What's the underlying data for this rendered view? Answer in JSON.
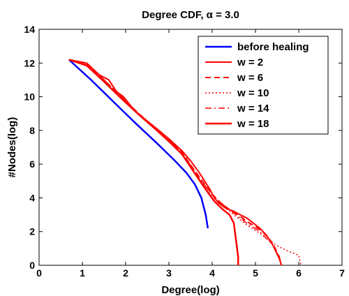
{
  "chart_data": {
    "type": "line",
    "title": "Degree CDF, α = 3.0",
    "xlabel": "Degree(log)",
    "ylabel": "#Nodes(log)",
    "xlim": [
      0,
      7
    ],
    "ylim": [
      0,
      14
    ],
    "xticks": [
      "0",
      "1",
      "2",
      "3",
      "4",
      "5",
      "6",
      "7"
    ],
    "yticks": [
      "0",
      "2",
      "4",
      "6",
      "8",
      "10",
      "12",
      "14"
    ],
    "grid": false,
    "legend_position": "top-right",
    "series": [
      {
        "name": "before healing",
        "color": "#0000ff",
        "style": "solid",
        "width": 2.5,
        "x": [
          0.69,
          1.2,
          1.7,
          2.2,
          2.7,
          3.1,
          3.4,
          3.6,
          3.75,
          3.85,
          3.9
        ],
        "y": [
          12.2,
          11.0,
          9.75,
          8.5,
          7.3,
          6.3,
          5.5,
          4.8,
          4.0,
          3.0,
          2.2
        ]
      },
      {
        "name": "w = 2",
        "color": "#ff0000",
        "style": "solid",
        "width": 2,
        "x": [
          0.69,
          1.1,
          1.39,
          1.61,
          1.79,
          1.95,
          2.2,
          2.48,
          2.77,
          3.0,
          3.3,
          3.5,
          3.7,
          3.85,
          3.95,
          4.05,
          4.15,
          4.3,
          4.5,
          4.65,
          4.8,
          4.95,
          5.1,
          5.25,
          5.4,
          5.55,
          5.6
        ],
        "y": [
          12.2,
          12.0,
          11.3,
          11.0,
          10.3,
          10.0,
          9.2,
          8.6,
          8.0,
          7.5,
          6.8,
          6.2,
          5.5,
          4.9,
          4.5,
          4.0,
          3.7,
          3.4,
          3.2,
          3.0,
          2.8,
          2.5,
          2.2,
          1.8,
          1.2,
          0.4,
          0.0
        ]
      },
      {
        "name": "w = 6",
        "color": "#ff0000",
        "style": "dashed",
        "width": 2,
        "x": [
          0.69,
          1.1,
          1.5,
          1.9,
          2.3,
          2.7,
          3.0,
          3.3,
          3.6,
          3.8,
          4.0,
          4.2,
          4.4,
          4.6,
          4.8,
          5.0,
          5.2,
          5.4,
          5.55,
          5.6
        ],
        "y": [
          12.2,
          11.9,
          11.0,
          10.0,
          9.0,
          8.1,
          7.4,
          6.7,
          5.6,
          4.9,
          4.2,
          3.7,
          3.3,
          3.0,
          2.6,
          2.3,
          1.9,
          1.3,
          0.5,
          0.0
        ]
      },
      {
        "name": "w = 10",
        "color": "#ff0000",
        "style": "dotted",
        "width": 1.5,
        "x": [
          0.69,
          1.1,
          1.5,
          1.9,
          2.3,
          2.7,
          3.0,
          3.3,
          3.6,
          3.9,
          4.2,
          4.5,
          4.8,
          5.1,
          5.4,
          5.7,
          5.9,
          6.0,
          6.05
        ],
        "y": [
          12.2,
          11.85,
          10.95,
          9.95,
          8.95,
          8.05,
          7.35,
          6.65,
          5.5,
          4.4,
          3.6,
          3.0,
          2.4,
          1.9,
          1.3,
          0.9,
          0.7,
          0.6,
          0.0
        ]
      },
      {
        "name": "w = 14",
        "color": "#ff0000",
        "style": "dashdot",
        "width": 1.5,
        "x": [
          0.69,
          1.1,
          1.5,
          1.9,
          2.3,
          2.7,
          3.0,
          3.3,
          3.6,
          3.9,
          4.2,
          4.5,
          4.8,
          5.1,
          5.4,
          5.55,
          5.6
        ],
        "y": [
          12.2,
          11.9,
          11.0,
          10.0,
          9.0,
          8.1,
          7.4,
          6.7,
          5.55,
          4.5,
          3.7,
          3.1,
          2.5,
          2.0,
          1.2,
          0.5,
          0.0
        ]
      },
      {
        "name": "w = 18",
        "color": "#ff0000",
        "style": "solid",
        "width": 2.5,
        "x": [
          0.69,
          1.1,
          1.5,
          1.9,
          2.3,
          2.7,
          3.0,
          3.3,
          3.6,
          3.85,
          4.05,
          4.25,
          4.4,
          4.5,
          4.55,
          4.6,
          4.6
        ],
        "y": [
          12.2,
          11.85,
          10.9,
          9.9,
          8.95,
          8.05,
          7.35,
          6.6,
          5.45,
          4.5,
          3.8,
          3.3,
          3.0,
          2.5,
          1.5,
          0.5,
          0.0
        ]
      }
    ]
  }
}
